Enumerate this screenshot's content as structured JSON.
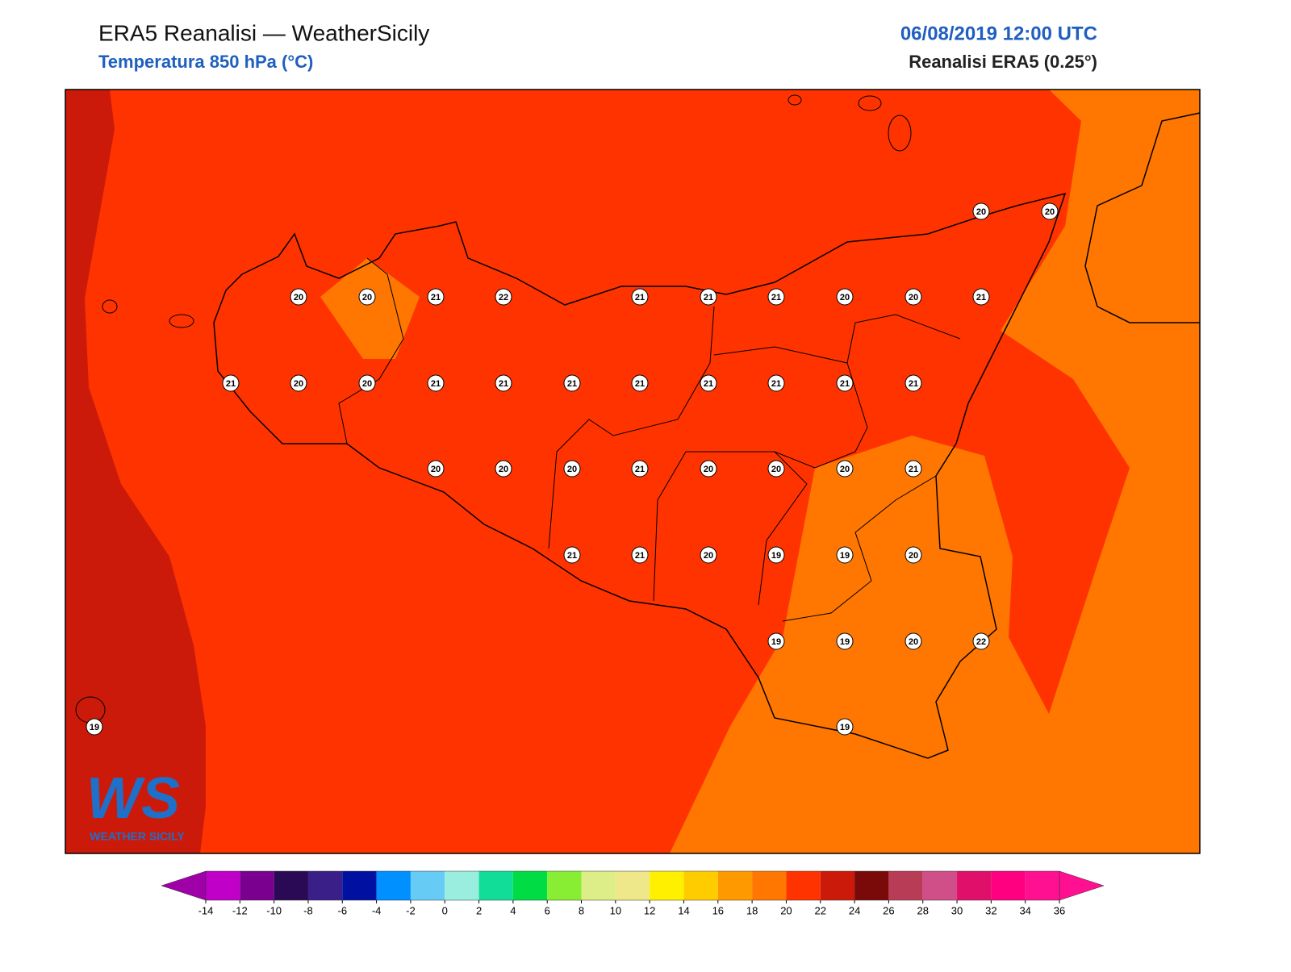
{
  "header": {
    "title": "ERA5 Reanalisi — WeatherSicily",
    "subtitle": "Temperatura 850 hPa (°C)",
    "datetime": "06/08/2019 12:00 UTC",
    "source": "Reanalisi ERA5 (0.25°)"
  },
  "map": {
    "stations": [
      20,
      20,
      20,
      20,
      21,
      22,
      21,
      21,
      21,
      20,
      20,
      21,
      21,
      20,
      20,
      21,
      21,
      21,
      21,
      21,
      21,
      21,
      21,
      20,
      20,
      20,
      21,
      20,
      20,
      20,
      21,
      21,
      21,
      20,
      19,
      19,
      20,
      19,
      19,
      20,
      22,
      19,
      19
    ]
  },
  "logo": {
    "mark": "WS",
    "text": "WEATHER SICILY"
  },
  "colorbar": {
    "ticks": [
      -14,
      -12,
      -10,
      -8,
      -6,
      -4,
      -2,
      0,
      2,
      4,
      6,
      8,
      10,
      12,
      14,
      16,
      18,
      20,
      22,
      24,
      26,
      28,
      30,
      32,
      34,
      36
    ],
    "under_color": "#a000a8",
    "over_color": "#ff1090",
    "colors": [
      "#c000c8",
      "#7a0090",
      "#2a0a55",
      "#3a1f88",
      "#0010a0",
      "#0090ff",
      "#66ccf5",
      "#99eee0",
      "#11dd99",
      "#00dd44",
      "#88ee33",
      "#dded88",
      "#eee88a",
      "#fff000",
      "#ffcc00",
      "#ff9900",
      "#ff7700",
      "#ff3300",
      "#cc1a0a",
      "#7a0a0a",
      "#b83c55",
      "#d04f88",
      "#e0106a",
      "#ff0080",
      "#ff1090"
    ]
  }
}
